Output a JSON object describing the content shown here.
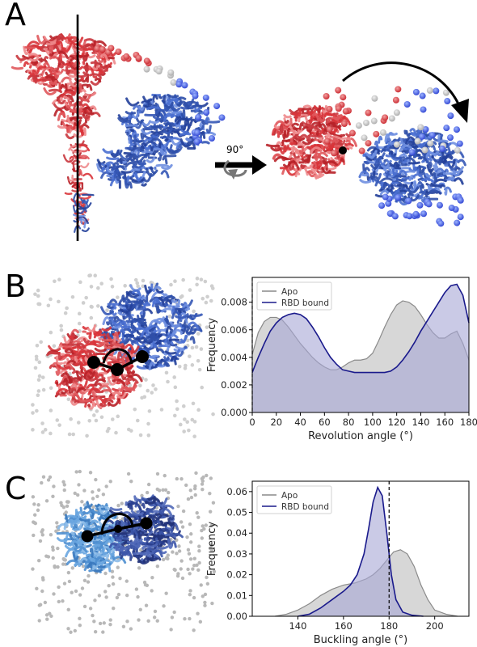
{
  "panels": {
    "a": {
      "letter": "A",
      "rotation_label": "90°"
    },
    "b": {
      "letter": "B"
    },
    "c": {
      "letter": "C"
    }
  },
  "colors": {
    "red": "#d9343a",
    "blue": "#3558b6",
    "apo_fill": "#c9c9c9",
    "apo_line": "#8a8a8a",
    "rbd_fill": "#a6a6d6",
    "rbd_line": "#1a1a8c"
  },
  "chart_data": [
    {
      "type": "area",
      "xlabel": "Revolution angle (°)",
      "ylabel": "Frequency",
      "xlim": [
        0,
        180
      ],
      "ylim": [
        0,
        0.0098
      ],
      "xticks": [
        0,
        20,
        40,
        60,
        80,
        100,
        120,
        140,
        160,
        180
      ],
      "yticks": [
        0.0,
        0.002,
        0.004,
        0.006,
        0.008
      ],
      "ytick_labels": [
        "0.000",
        "0.002",
        "0.004",
        "0.006",
        "0.008"
      ],
      "vline": 0,
      "legend": "top-left",
      "series": [
        {
          "name": "Apo",
          "x": [
            0,
            5,
            10,
            15,
            20,
            25,
            30,
            35,
            40,
            45,
            50,
            55,
            60,
            65,
            70,
            75,
            80,
            85,
            90,
            95,
            100,
            105,
            110,
            115,
            120,
            125,
            130,
            135,
            140,
            145,
            150,
            155,
            160,
            165,
            170,
            175,
            180
          ],
          "y": [
            0.0042,
            0.0058,
            0.0066,
            0.0069,
            0.0069,
            0.0067,
            0.0062,
            0.0056,
            0.005,
            0.0045,
            0.004,
            0.0036,
            0.0033,
            0.0031,
            0.0031,
            0.0033,
            0.0036,
            0.0038,
            0.0038,
            0.0039,
            0.0043,
            0.0052,
            0.0062,
            0.0071,
            0.0078,
            0.0081,
            0.008,
            0.0077,
            0.0071,
            0.0064,
            0.0058,
            0.0054,
            0.0054,
            0.0057,
            0.0059,
            0.005,
            0.0038
          ]
        },
        {
          "name": "RBD bound",
          "x": [
            0,
            5,
            10,
            15,
            20,
            25,
            30,
            35,
            40,
            45,
            50,
            55,
            60,
            65,
            70,
            75,
            80,
            85,
            90,
            95,
            100,
            105,
            110,
            115,
            120,
            125,
            130,
            135,
            140,
            145,
            150,
            155,
            160,
            165,
            170,
            175,
            180
          ],
          "y": [
            0.0029,
            0.004,
            0.005,
            0.0059,
            0.0065,
            0.0069,
            0.0071,
            0.0072,
            0.0071,
            0.0068,
            0.0062,
            0.0055,
            0.0047,
            0.004,
            0.0035,
            0.0031,
            0.003,
            0.0029,
            0.0029,
            0.0029,
            0.0029,
            0.0029,
            0.0029,
            0.003,
            0.0033,
            0.0038,
            0.0044,
            0.0051,
            0.0059,
            0.0066,
            0.0073,
            0.008,
            0.0087,
            0.0092,
            0.0093,
            0.0085,
            0.0065
          ]
        }
      ]
    },
    {
      "type": "area",
      "xlabel": "Buckling angle (°)",
      "ylabel": "Frequency",
      "xlim": [
        120,
        215
      ],
      "ylim": [
        0,
        0.065
      ],
      "xticks": [
        140,
        160,
        180,
        200
      ],
      "yticks": [
        0.0,
        0.01,
        0.02,
        0.03,
        0.04,
        0.05,
        0.06
      ],
      "ytick_labels": [
        "0.00",
        "0.01",
        "0.02",
        "0.03",
        "0.04",
        "0.05",
        "0.06"
      ],
      "vline": 180,
      "legend": "top-left",
      "series": [
        {
          "name": "Apo",
          "x": [
            130,
            135,
            140,
            145,
            150,
            155,
            160,
            165,
            170,
            173,
            176,
            179,
            182,
            185,
            188,
            191,
            194,
            197,
            200,
            205,
            210
          ],
          "y": [
            0.0,
            0.001,
            0.003,
            0.006,
            0.01,
            0.013,
            0.015,
            0.016,
            0.018,
            0.02,
            0.023,
            0.027,
            0.031,
            0.032,
            0.03,
            0.024,
            0.015,
            0.008,
            0.003,
            0.001,
            0.0
          ]
        },
        {
          "name": "RBD bound",
          "x": [
            140,
            145,
            150,
            155,
            160,
            163,
            166,
            169,
            171,
            173,
            175,
            177,
            179,
            181,
            183,
            186,
            190,
            195
          ],
          "y": [
            0.0,
            0.001,
            0.004,
            0.008,
            0.012,
            0.015,
            0.02,
            0.03,
            0.042,
            0.055,
            0.062,
            0.058,
            0.04,
            0.02,
            0.008,
            0.002,
            0.0005,
            0.0
          ]
        }
      ]
    }
  ]
}
